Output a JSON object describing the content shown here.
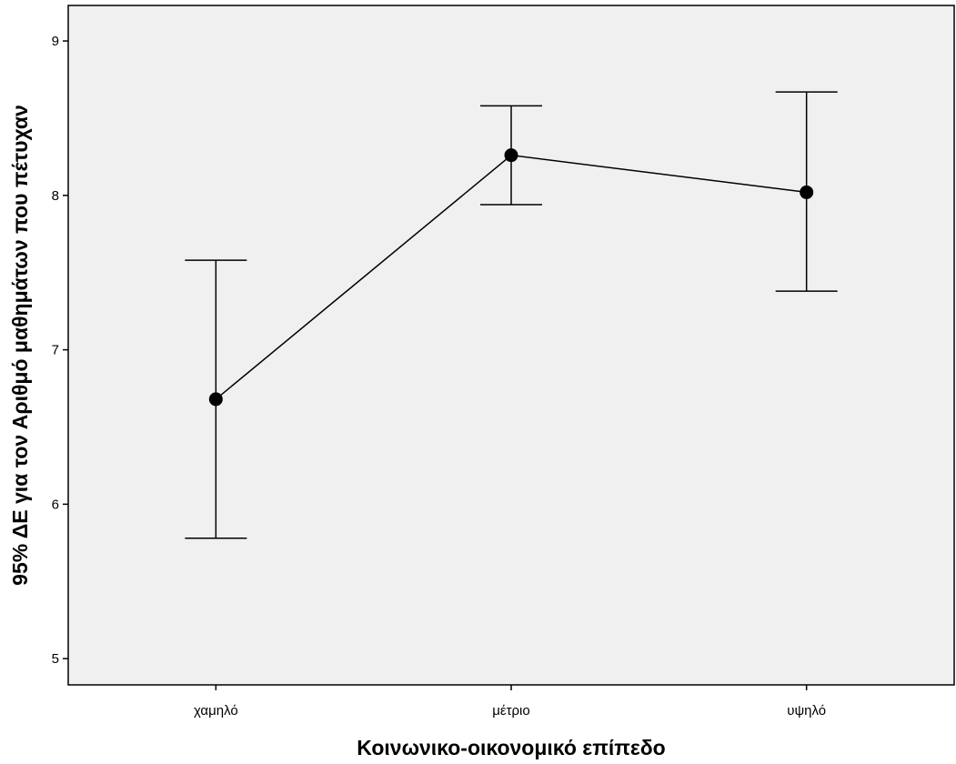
{
  "chart_data": {
    "type": "errorbar",
    "xlabel": "Κοινωνικο-οικονομικό επίπεδο",
    "ylabel": "95% ΔΕ για τον Αριθμό μαθημάτων που πέτυχαν",
    "categories": [
      "χαμηλό",
      "μέτριο",
      "υψηλό"
    ],
    "means": [
      6.68,
      8.26,
      8.02
    ],
    "ci_lower": [
      5.78,
      7.94,
      7.38
    ],
    "ci_upper": [
      7.58,
      8.58,
      8.67
    ],
    "ylim": [
      4.83,
      9.23
    ],
    "yticks": [
      5,
      6,
      7,
      8,
      9
    ],
    "grid": false,
    "colors": {
      "plot_background": "#f0f0f0",
      "line": "#000000",
      "marker": "#000000"
    }
  }
}
